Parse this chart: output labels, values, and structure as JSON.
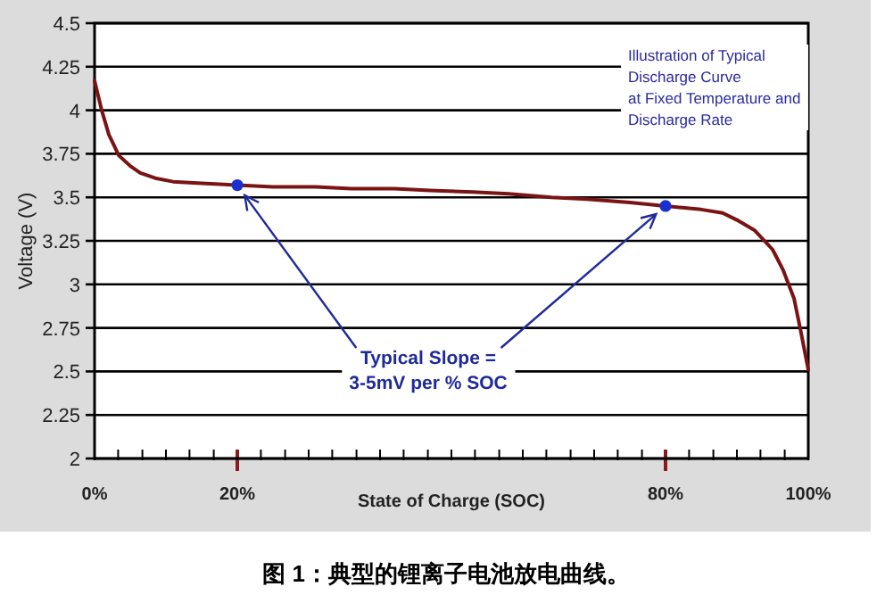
{
  "chart_data": {
    "type": "line",
    "title": "图 1：典型的锂离子电池放电曲线。",
    "xlabel": "State of Charge (SOC)",
    "ylabel": "Voltage (V)",
    "annotations": [
      "Illustration of Typical\nDischarge Curve\nat Fixed Temperature and\nDischarge Rate",
      {
        "text": "Typical Slope =\n3-5mV per % SOC",
        "x": 20,
        "y": 3.57
      }
    ],
    "xlim": [
      0,
      100
    ],
    "ylim": [
      2,
      4.5
    ],
    "xticks": [
      {
        "value": 0,
        "label": "0%"
      },
      {
        "value": 3.3,
        "label": null
      },
      {
        "value": 6.7,
        "label": null
      },
      {
        "value": 10,
        "label": null
      },
      {
        "value": 13.3,
        "label": null
      },
      {
        "value": 16.7,
        "label": null
      },
      {
        "value": 20,
        "label": "20%"
      },
      {
        "value": 23.3,
        "label": null
      },
      {
        "value": 26.7,
        "label": null
      },
      {
        "value": 30,
        "label": null
      },
      {
        "value": 33.3,
        "label": null
      },
      {
        "value": 36.7,
        "label": null
      },
      {
        "value": 40,
        "label": null
      },
      {
        "value": 43.3,
        "label": null
      },
      {
        "value": 46.7,
        "label": null
      },
      {
        "value": 50,
        "label": null
      },
      {
        "value": 53.3,
        "label": null
      },
      {
        "value": 56.7,
        "label": null
      },
      {
        "value": 60,
        "label": null
      },
      {
        "value": 63.3,
        "label": null
      },
      {
        "value": 66.7,
        "label": null
      },
      {
        "value": 70,
        "label": null
      },
      {
        "value": 73.3,
        "label": null
      },
      {
        "value": 76.7,
        "label": null
      },
      {
        "value": 80,
        "label": "80%"
      },
      {
        "value": 83.3,
        "label": null
      },
      {
        "value": 86.7,
        "label": null
      },
      {
        "value": 90,
        "label": null
      },
      {
        "value": 93.3,
        "label": null
      },
      {
        "value": 96.7,
        "label": null
      },
      {
        "value": 100,
        "label": "100%"
      }
    ],
    "yticks": [
      2,
      2.25,
      2.5,
      2.75,
      3,
      3.25,
      3.5,
      3.75,
      4,
      4.25,
      4.5
    ],
    "grid": "y",
    "series": [
      {
        "type": "line",
        "color": "#7a1414",
        "x": [
          0,
          1,
          2,
          3.4,
          5,
          6.4,
          8.5,
          11,
          15,
          20,
          25,
          31,
          36,
          42,
          47,
          53,
          58,
          64,
          69,
          75,
          80,
          85,
          88,
          90,
          92.5,
          95,
          96.5,
          98,
          99,
          100
        ],
        "values": [
          4.17,
          4.0,
          3.86,
          3.74,
          3.68,
          3.64,
          3.61,
          3.59,
          3.58,
          3.57,
          3.56,
          3.56,
          3.55,
          3.55,
          3.54,
          3.53,
          3.52,
          3.5,
          3.49,
          3.47,
          3.45,
          3.43,
          3.41,
          3.37,
          3.31,
          3.2,
          3.08,
          2.92,
          2.72,
          2.51
        ]
      },
      {
        "type": "scatter",
        "color": "#1a2fd0",
        "x": [
          20,
          80
        ],
        "values": [
          3.57,
          3.45
        ]
      }
    ]
  }
}
